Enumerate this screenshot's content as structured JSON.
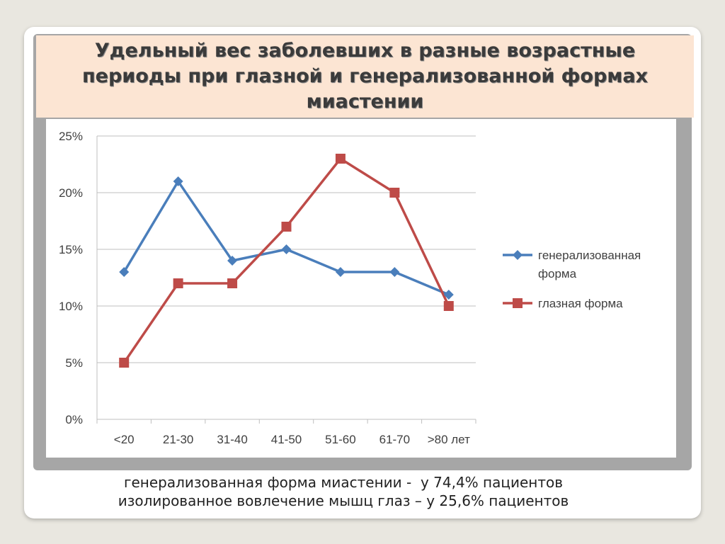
{
  "slide": {
    "title": "Удельный вес заболевших в разные возрастные периоды при глазной и генерализованной формах миастении",
    "footnote_lines": [
      "генерализованная форма миастении -  у 74,4% пациентов",
      "изолированное вовлечение мышц глаз – у 25,6% пациентов"
    ]
  },
  "chart_data": {
    "type": "line",
    "categories": [
      "<20",
      "21-30",
      "31-40",
      "41-50",
      "51-60",
      "61-70",
      ">80 лет"
    ],
    "series": [
      {
        "name": "генерализованная форма",
        "legend_lines": [
          "генерализованная",
          "форма"
        ],
        "values": [
          13,
          21,
          14,
          15,
          13,
          13,
          11
        ],
        "color": "#4a7ebb",
        "marker": "diamond"
      },
      {
        "name": "глазная форма",
        "legend_lines": [
          "глазная форма"
        ],
        "values": [
          5,
          12,
          12,
          17,
          23,
          20,
          10
        ],
        "color": "#be4b48",
        "marker": "square"
      }
    ],
    "yticks": [
      "0%",
      "5%",
      "10%",
      "15%",
      "20%",
      "25%"
    ],
    "ylim": [
      0,
      25
    ],
    "grid": true,
    "legend_position": "right"
  }
}
